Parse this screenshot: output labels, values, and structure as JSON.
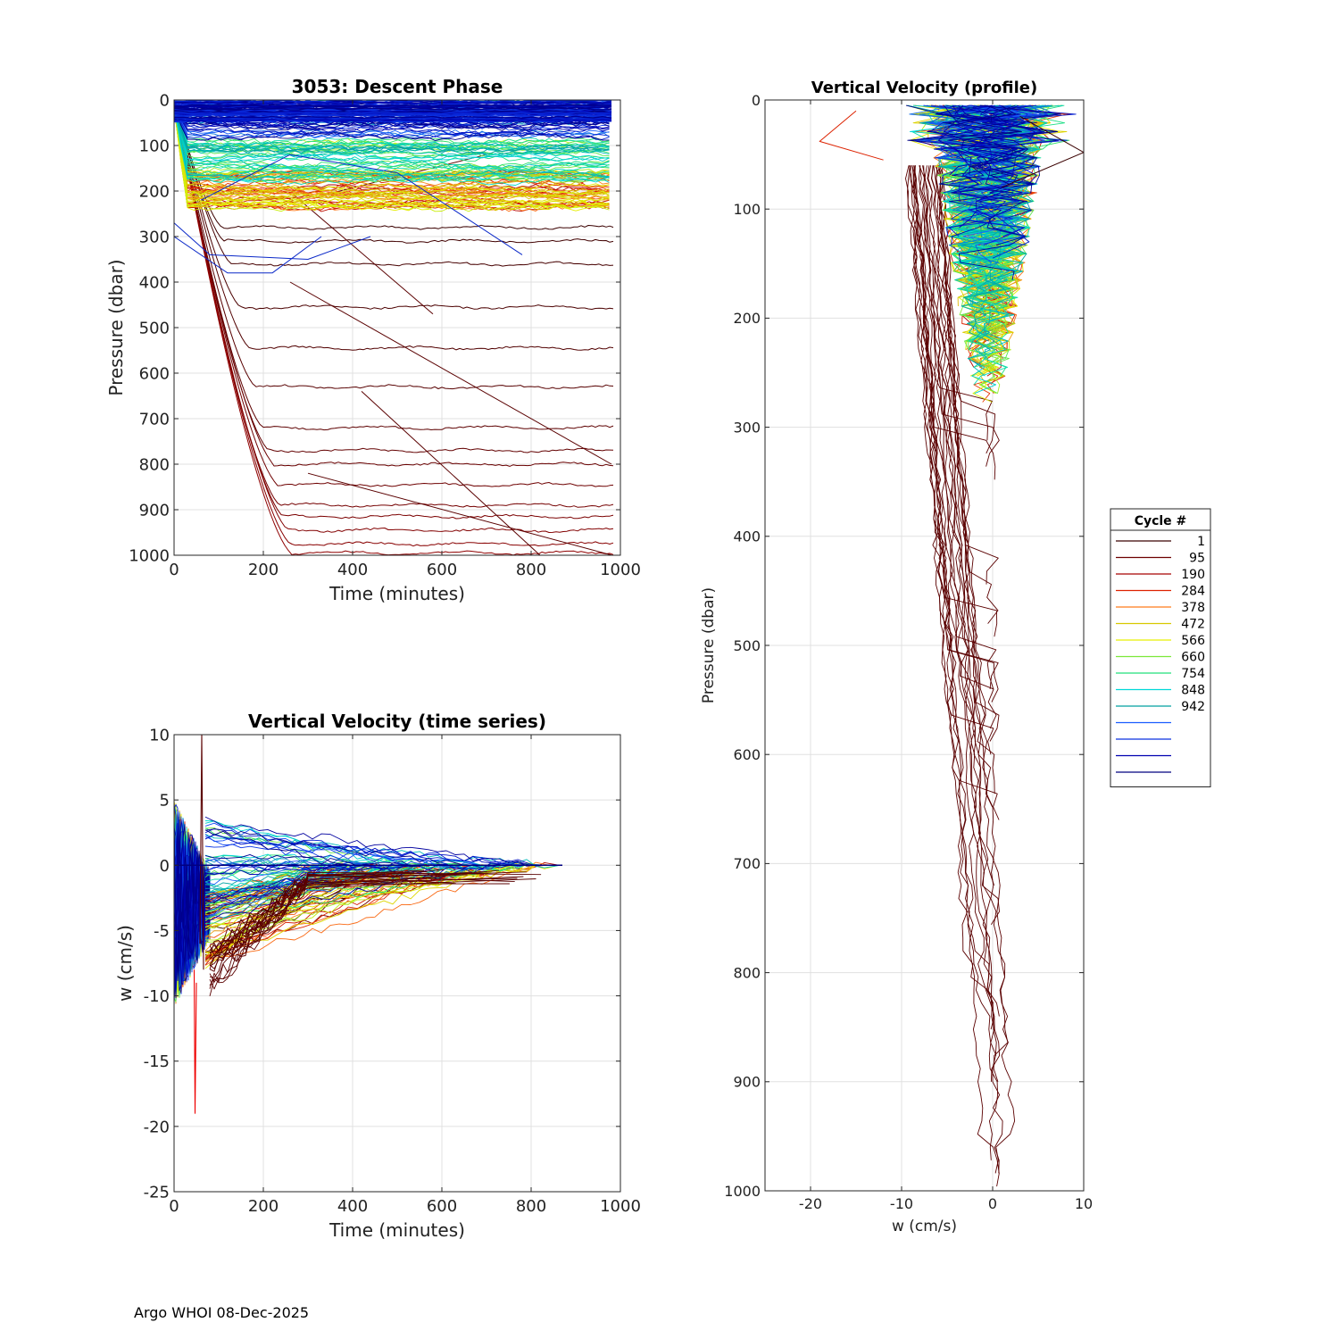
{
  "footer": "Argo WHOI 08-Dec-2025",
  "colors": {
    "shallow": [
      "#000080",
      "#0000c8",
      "#0a28ff",
      "#1f5cff",
      "#1a8cff"
    ],
    "mid": [
      "#00c8c8",
      "#1fe07a",
      "#4fe83a",
      "#8ef000",
      "#c8f000",
      "#e6e600"
    ],
    "deep": [
      "#ff9900",
      "#ff6600",
      "#ee3300",
      "#cc0000",
      "#8b0000",
      "#5a0000"
    ]
  },
  "chart_data": [
    {
      "id": "descent",
      "type": "line",
      "title": "3053: Descent Phase",
      "xlabel": "Time (minutes)",
      "ylabel": "Pressure (dbar)",
      "xlim": [
        0,
        1000
      ],
      "ylim": [
        0,
        1000
      ],
      "y_reversed": true,
      "xticks": [
        0,
        200,
        400,
        600,
        800,
        1000
      ],
      "yticks": [
        0,
        100,
        200,
        300,
        400,
        500,
        600,
        700,
        800,
        900,
        1000
      ],
      "grid": true,
      "series_note": "one line per cycle; colour by cycle number",
      "park_depths_deep_cycles": [
        280,
        310,
        360,
        455,
        545,
        630,
        720,
        770,
        800,
        845,
        890,
        915,
        945,
        975,
        995
      ],
      "park_depths_shallow_cycles": [
        10,
        20,
        30,
        45,
        60,
        80,
        100,
        120,
        140,
        160,
        180,
        200,
        215,
        235,
        250
      ]
    },
    {
      "id": "wtime",
      "type": "line",
      "title": "Vertical Velocity (time series)",
      "xlabel": "Time (minutes)",
      "ylabel": "w (cm/s)",
      "xlim": [
        0,
        1000
      ],
      "ylim": [
        -25,
        10
      ],
      "xticks": [
        0,
        200,
        400,
        600,
        800,
        1000
      ],
      "yticks": [
        10,
        5,
        0,
        -5,
        -10,
        -15,
        -20,
        -25
      ],
      "grid": true,
      "extremes": {
        "min_w": -19,
        "max_w": 10,
        "max_time": 870
      }
    },
    {
      "id": "wprofile",
      "type": "line",
      "title": "Vertical Velocity (profile)",
      "xlabel": "w (cm/s)",
      "ylabel": "Pressure (dbar)",
      "xlim": [
        -25,
        10
      ],
      "ylim": [
        0,
        1000
      ],
      "y_reversed": true,
      "xticks": [
        -20,
        -10,
        0,
        10
      ],
      "yticks": [
        0,
        100,
        200,
        300,
        400,
        500,
        600,
        700,
        800,
        900,
        1000
      ],
      "grid": true
    }
  ],
  "legend": {
    "title": "Cycle #",
    "entries": [
      {
        "label": "1",
        "color": "#3a0000"
      },
      {
        "label": "95",
        "color": "#6e0000"
      },
      {
        "label": "190",
        "color": "#a80000"
      },
      {
        "label": "284",
        "color": "#dd2200"
      },
      {
        "label": "378",
        "color": "#ff7a1a"
      },
      {
        "label": "472",
        "color": "#d8c800"
      },
      {
        "label": "566",
        "color": "#e6f000"
      },
      {
        "label": "660",
        "color": "#7ce83a"
      },
      {
        "label": "754",
        "color": "#22e07a"
      },
      {
        "label": "848",
        "color": "#00d8d8"
      },
      {
        "label": "942",
        "color": "#00a0a0"
      },
      {
        "label": "",
        "color": "#1a5cff"
      },
      {
        "label": "",
        "color": "#0a30e0"
      },
      {
        "label": "",
        "color": "#0000b0"
      },
      {
        "label": "",
        "color": "#000080"
      }
    ]
  }
}
